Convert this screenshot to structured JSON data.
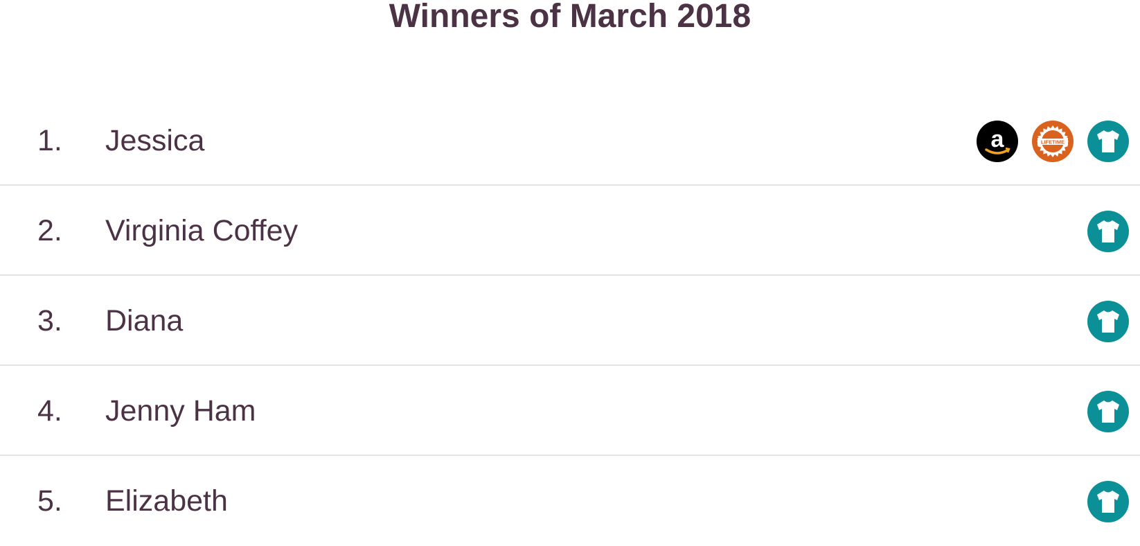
{
  "title": "Winners of March 2018",
  "colors": {
    "text": "#4b3345",
    "amazon": "#000000",
    "lifetime": "#d9621f",
    "shirt": "#0a9096"
  },
  "winners": [
    {
      "rank": "1.",
      "name": "Jessica",
      "prizes": [
        "amazon-icon",
        "lifetime-badge-icon",
        "tshirt-icon"
      ]
    },
    {
      "rank": "2.",
      "name": "Virginia Coffey",
      "prizes": [
        "tshirt-icon"
      ]
    },
    {
      "rank": "3.",
      "name": "Diana",
      "prizes": [
        "tshirt-icon"
      ]
    },
    {
      "rank": "4.",
      "name": "Jenny Ham",
      "prizes": [
        "tshirt-icon"
      ]
    },
    {
      "rank": "5.",
      "name": "Elizabeth",
      "prizes": [
        "tshirt-icon"
      ]
    }
  ],
  "badge_text": "LIFETIME"
}
